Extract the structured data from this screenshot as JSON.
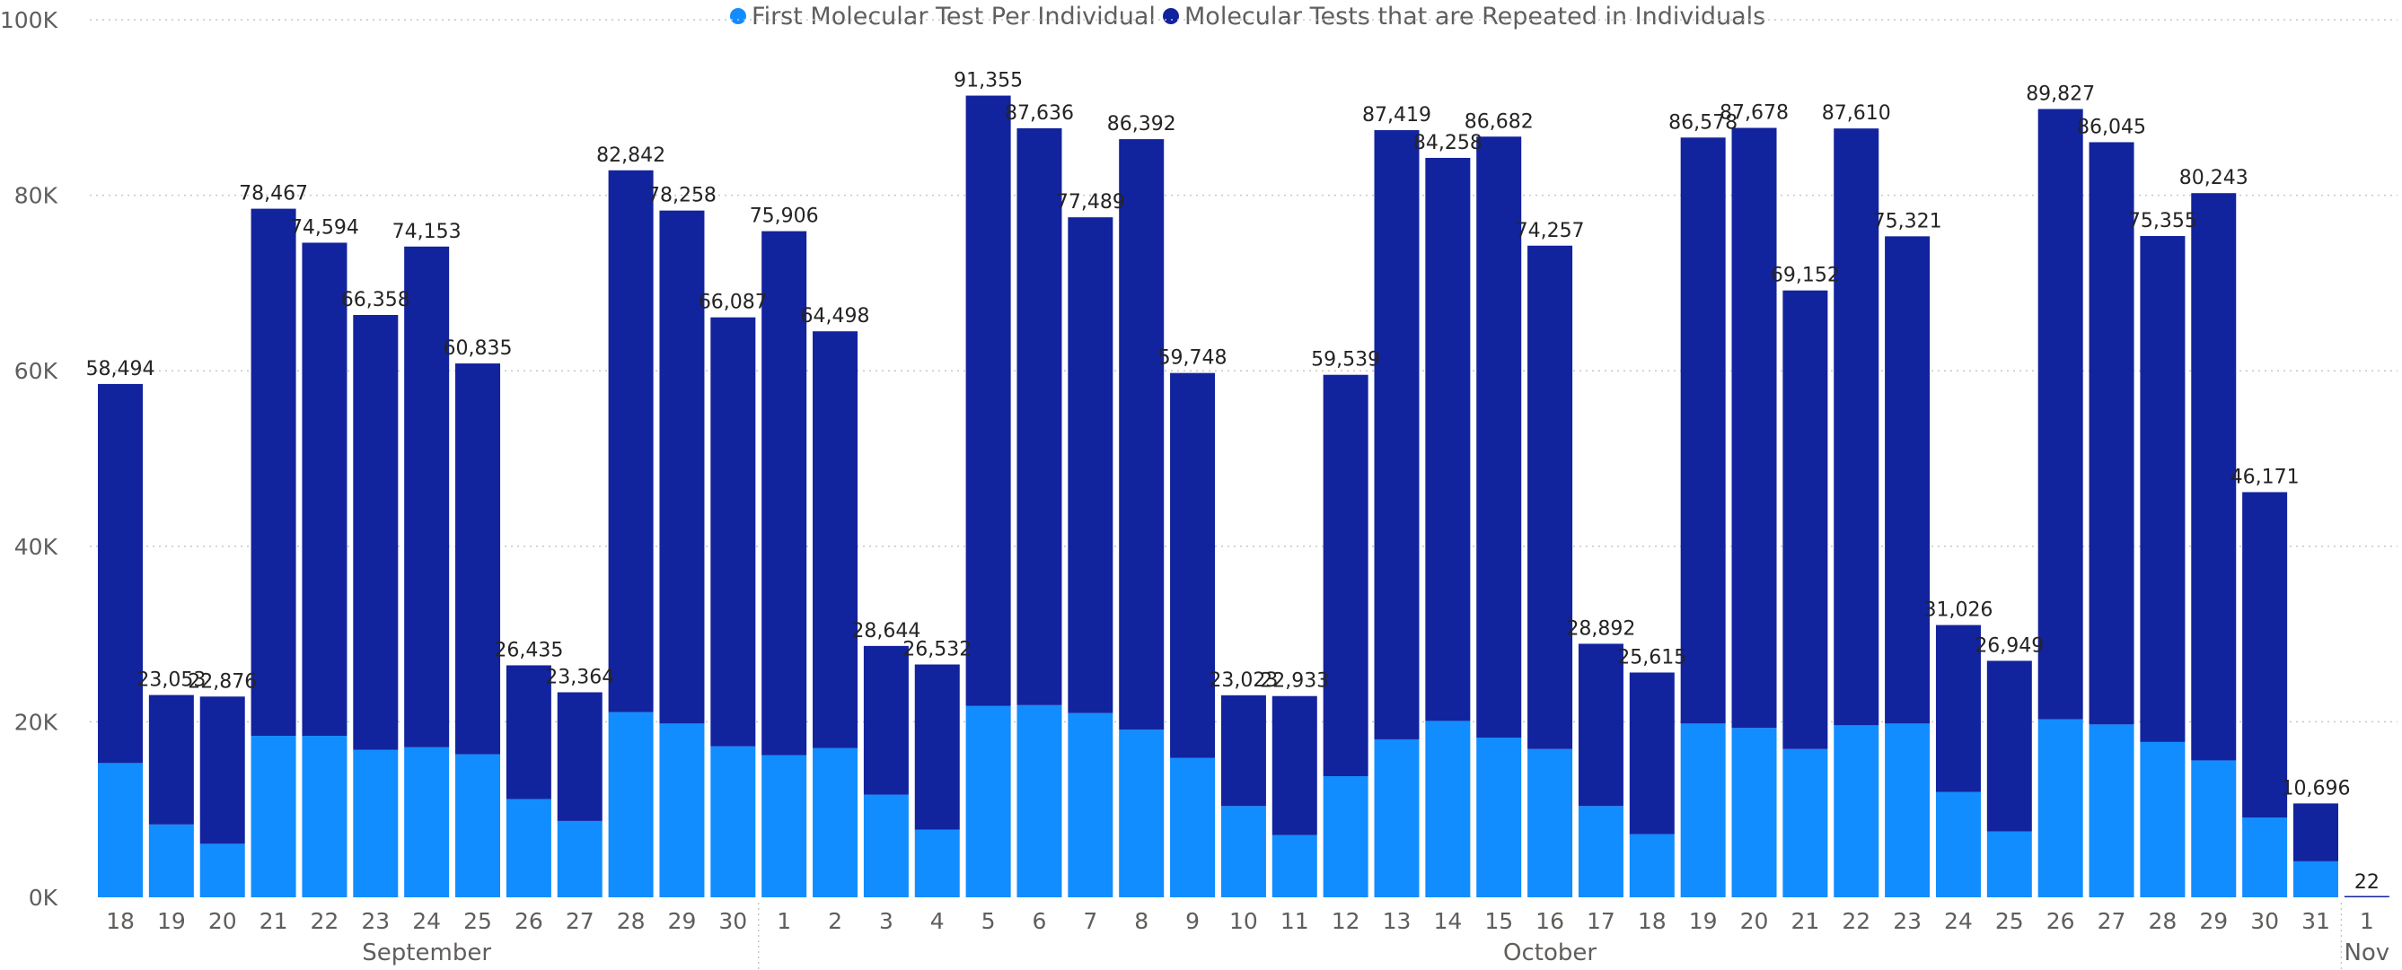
{
  "chart_data": {
    "type": "bar",
    "stacked": true,
    "colors": {
      "first": "#118DFF",
      "repeated": "#12239E",
      "grid": "#C8C6C4",
      "axis_text": "#605E5C"
    },
    "legend": {
      "position": "top-center",
      "items": [
        {
          "name": "First Molecular Test Per Individual",
          "color": "#118DFF"
        },
        {
          "name": "Molecular Tests that are Repeated in Individuals",
          "color": "#12239E"
        }
      ]
    },
    "ylim": [
      0,
      100000
    ],
    "y_ticks": [
      {
        "value": 0,
        "label": "0K"
      },
      {
        "value": 20000,
        "label": "20K"
      },
      {
        "value": 40000,
        "label": "40K"
      },
      {
        "value": 60000,
        "label": "60K"
      },
      {
        "value": 80000,
        "label": "80K"
      },
      {
        "value": 100000,
        "label": "100K"
      }
    ],
    "grid": true,
    "months": [
      {
        "name": "September",
        "start": 0,
        "end": 12
      },
      {
        "name": "October",
        "start": 13,
        "end": 43
      },
      {
        "name": "Nov",
        "start": 44,
        "end": 44
      }
    ],
    "categories": [
      "18",
      "19",
      "20",
      "21",
      "22",
      "23",
      "24",
      "25",
      "26",
      "27",
      "28",
      "29",
      "30",
      "1",
      "2",
      "3",
      "4",
      "5",
      "6",
      "7",
      "8",
      "9",
      "10",
      "11",
      "12",
      "13",
      "14",
      "15",
      "16",
      "17",
      "18",
      "19",
      "20",
      "21",
      "22",
      "23",
      "24",
      "25",
      "26",
      "27",
      "28",
      "29",
      "30",
      "31",
      "1"
    ],
    "series": [
      {
        "name": "First Molecular Test Per Individual",
        "color": "#118DFF",
        "values": [
          15300,
          8300,
          6100,
          18400,
          18400,
          16800,
          17100,
          16300,
          11200,
          8700,
          21100,
          19800,
          17200,
          16200,
          17000,
          11700,
          7700,
          21800,
          21900,
          21000,
          19100,
          15900,
          10400,
          7100,
          13800,
          18000,
          20100,
          18200,
          16900,
          10400,
          7200,
          19800,
          19300,
          16900,
          19600,
          19800,
          12000,
          7500,
          20300,
          19700,
          17700,
          15600,
          9100,
          4100,
          0
        ]
      },
      {
        "name": "Molecular Tests that are Repeated in Individuals",
        "color": "#12239E",
        "values": [
          43194,
          14753,
          16776,
          60067,
          56194,
          49558,
          57053,
          44535,
          15235,
          14664,
          61742,
          58458,
          48887,
          59706,
          47498,
          16944,
          18832,
          69555,
          65736,
          56489,
          67292,
          43848,
          12623,
          15833,
          45739,
          69419,
          64158,
          68482,
          57357,
          18492,
          18415,
          66778,
          68378,
          52252,
          68010,
          55521,
          19026,
          19449,
          69527,
          66345,
          57655,
          64643,
          37071,
          6596,
          22
        ]
      }
    ],
    "totals": [
      58494,
      23053,
      22876,
      78467,
      74594,
      66358,
      74153,
      60835,
      26435,
      23364,
      82842,
      78258,
      66087,
      75906,
      64498,
      28644,
      26532,
      91355,
      87636,
      77489,
      86392,
      59748,
      23023,
      22933,
      59539,
      87419,
      84258,
      86682,
      74257,
      28892,
      25615,
      86578,
      87678,
      69152,
      87610,
      75321,
      31026,
      26949,
      89827,
      86045,
      75355,
      80243,
      46171,
      10696,
      22
    ],
    "total_labels": [
      "58,494",
      "23,053",
      "22,876",
      "78,467",
      "74,594",
      "66,358",
      "74,153",
      "60,835",
      "26,435",
      "23,364",
      "82,842",
      "78,258",
      "66,087",
      "75,906",
      "64,498",
      "28,644",
      "26,532",
      "91,355",
      "87,636",
      "77,489",
      "86,392",
      "59,748",
      "23,023",
      "22,933",
      "59,539",
      "87,419",
      "84,258",
      "86,682",
      "74,257",
      "28,892",
      "25,615",
      "86,578",
      "87,678",
      "69,152",
      "87,610",
      "75,321",
      "31,026",
      "26,949",
      "89,827",
      "86,045",
      "75,355",
      "80,243",
      "46,171",
      "10,696",
      "22"
    ]
  }
}
